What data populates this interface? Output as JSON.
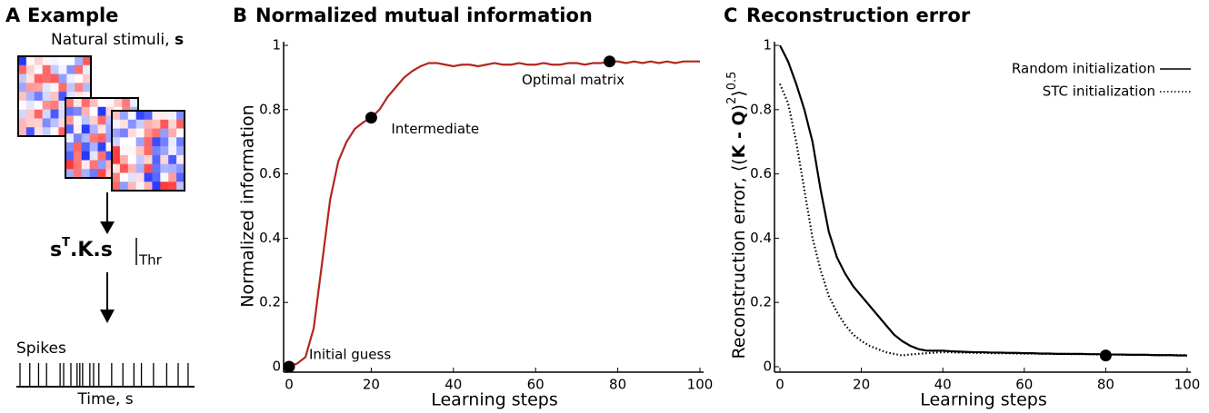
{
  "diagram": {
    "panel_label": "A",
    "title": "Example",
    "stimuli_label": "Natural stimuli,",
    "stimuli_symbol": "s",
    "formula": {
      "base": "s",
      "sup": "T",
      "rest": ".K.s",
      "sub": "Thr"
    },
    "spikes_label": "Spikes",
    "time_label": "Time, s"
  },
  "chart_data": [
    {
      "type": "line",
      "panel_label": "B",
      "title": "Normalized mutual information",
      "x_label": "Learning steps",
      "y_label": "Normalized information",
      "x": [
        0,
        2,
        4,
        6,
        8,
        10,
        12,
        14,
        16,
        18,
        20,
        22,
        24,
        26,
        28,
        30,
        32,
        34,
        36,
        38,
        40,
        42,
        44,
        46,
        48,
        50,
        52,
        54,
        56,
        58,
        60,
        62,
        64,
        66,
        68,
        70,
        72,
        74,
        76,
        78,
        80,
        82,
        84,
        86,
        88,
        90,
        92,
        94,
        96,
        98,
        100
      ],
      "values": [
        0,
        0.01,
        0.03,
        0.12,
        0.32,
        0.52,
        0.64,
        0.7,
        0.74,
        0.76,
        0.775,
        0.8,
        0.84,
        0.87,
        0.9,
        0.92,
        0.935,
        0.945,
        0.945,
        0.94,
        0.935,
        0.94,
        0.94,
        0.935,
        0.94,
        0.945,
        0.94,
        0.94,
        0.945,
        0.94,
        0.94,
        0.945,
        0.94,
        0.94,
        0.945,
        0.945,
        0.94,
        0.945,
        0.945,
        0.95,
        0.95,
        0.945,
        0.95,
        0.945,
        0.95,
        0.945,
        0.95,
        0.945,
        0.95,
        0.95,
        0.95
      ],
      "color": "#b3261e",
      "points": [
        {
          "x": 0,
          "y": 0,
          "label": "Initial guess"
        },
        {
          "x": 20,
          "y": 0.775,
          "label": "Intermediate"
        },
        {
          "x": 78,
          "y": 0.95,
          "label": "Optimal matrix"
        }
      ],
      "xlim": [
        0,
        100
      ],
      "ylim": [
        0,
        1
      ],
      "xticks": [
        0,
        20,
        40,
        60,
        80,
        100
      ],
      "yticks": [
        0,
        0.2,
        0.4,
        0.6,
        0.8,
        1
      ]
    },
    {
      "type": "line",
      "panel_label": "C",
      "title": "Reconstruction error",
      "x_label": "Learning steps",
      "y_label_parts": [
        "Reconstruction error, ⟨(",
        "K - Q",
        ")",
        "2",
        "⟩",
        "0.5"
      ],
      "x": [
        0,
        2,
        4,
        6,
        8,
        10,
        12,
        14,
        16,
        18,
        20,
        22,
        24,
        26,
        28,
        30,
        32,
        34,
        36,
        38,
        40,
        42,
        44,
        46,
        48,
        50,
        52,
        54,
        56,
        58,
        60,
        62,
        64,
        66,
        68,
        70,
        72,
        74,
        76,
        78,
        80,
        82,
        84,
        86,
        88,
        90,
        92,
        94,
        96,
        98,
        100
      ],
      "series": [
        {
          "name": "Random initialization",
          "color": "#000000",
          "dash": "solid",
          "values": [
            1,
            0.95,
            0.88,
            0.8,
            0.7,
            0.55,
            0.42,
            0.34,
            0.29,
            0.25,
            0.22,
            0.19,
            0.16,
            0.13,
            0.1,
            0.08,
            0.065,
            0.055,
            0.05,
            0.05,
            0.05,
            0.048,
            0.047,
            0.046,
            0.045,
            0.045,
            0.044,
            0.044,
            0.043,
            0.043,
            0.042,
            0.042,
            0.041,
            0.041,
            0.04,
            0.04,
            0.04,
            0.04,
            0.039,
            0.039,
            0.038,
            0.038,
            0.038,
            0.037,
            0.037,
            0.037,
            0.036,
            0.036,
            0.036,
            0.035,
            0.035
          ]
        },
        {
          "name": "STC initialization",
          "color": "#000000",
          "dash": "dotted",
          "values": [
            0.88,
            0.82,
            0.7,
            0.55,
            0.4,
            0.3,
            0.22,
            0.17,
            0.13,
            0.1,
            0.08,
            0.065,
            0.055,
            0.045,
            0.04,
            0.035,
            0.038,
            0.04,
            0.042,
            0.044,
            0.045,
            0.045,
            0.044,
            0.044,
            0.043,
            0.043,
            0.042,
            0.042,
            0.042,
            0.041,
            0.041,
            0.041,
            0.04,
            0.04,
            0.04,
            0.04,
            0.039,
            0.039,
            0.039,
            0.038,
            0.038,
            0.038,
            0.037,
            0.037,
            0.037,
            0.037,
            0.036,
            0.036,
            0.036,
            0.036,
            0.036
          ]
        }
      ],
      "points": [
        {
          "x": 80,
          "y": 0.035
        }
      ],
      "legend": "upper right",
      "xlim": [
        0,
        100
      ],
      "ylim": [
        0,
        1
      ],
      "xticks": [
        0,
        20,
        40,
        60,
        80,
        100
      ],
      "yticks": [
        0,
        0.2,
        0.4,
        0.6,
        0.8,
        1
      ]
    }
  ]
}
